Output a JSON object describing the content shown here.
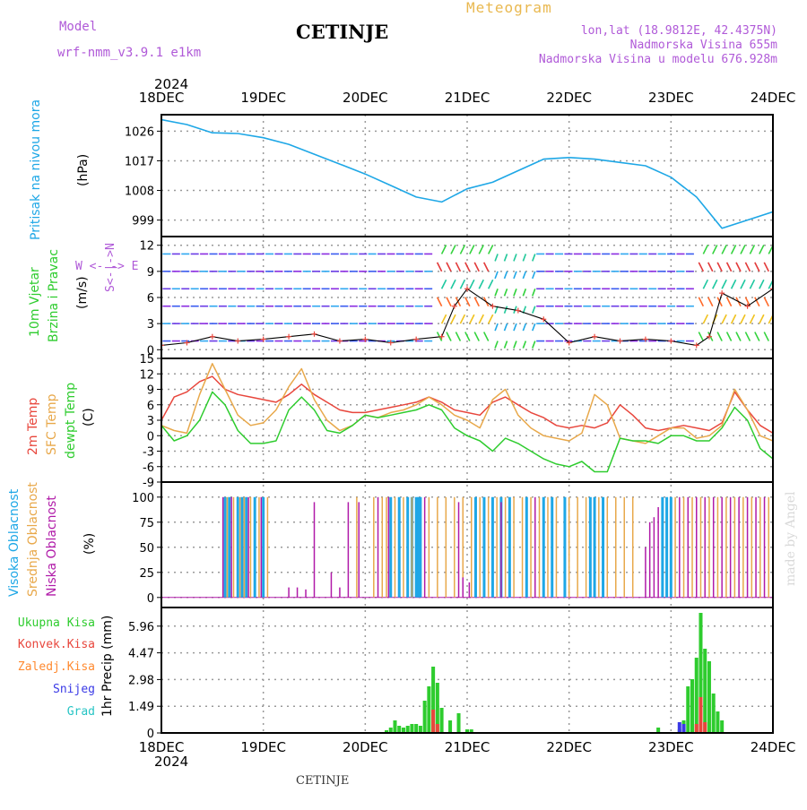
{
  "header": {
    "model_label": "Model",
    "model_name": "wrf-nmm_v3.9.1 e1km",
    "title": "CETINJE",
    "meteogram": "Meteogram",
    "lonlat": "lon,lat (18.9812E, 42.4375N)",
    "elevation": "Nadmorska Visina 655m",
    "model_elevation": "Nadmorska Visina u modelu 676.928m"
  },
  "x_axis": {
    "year": "2024",
    "labels": [
      "18DEC",
      "19DEC",
      "20DEC",
      "21DEC",
      "22DEC",
      "23DEC",
      "24DEC"
    ]
  },
  "colors": {
    "pressure": "#1ea7e6",
    "wind_label": "#2ecc2e",
    "temp2m": "#e8463c",
    "sfc_temp": "#e8a84a",
    "dewpt": "#2ecc2e",
    "cloud_high": "#1ea7e6",
    "cloud_mid": "#e8a84a",
    "cloud_low": "#b01aa8",
    "precip_total": "#2ecc2e",
    "precip_conv": "#e8463c",
    "precip_frozen": "#ff8a30",
    "snow": "#3a3ae6",
    "graupel": "#26c4c4",
    "watermark": "#d9d9d9"
  },
  "panels": {
    "pressure": {
      "label1": "Pritisak na nivou mora",
      "unit": "(hPa)",
      "ticks": [
        "1026",
        "1017",
        "1008",
        "999"
      ]
    },
    "wind": {
      "label1": "10m Vjetar",
      "label2": "Brzina i Pravac",
      "unit": "(m/s)",
      "ticks": [
        "12",
        "9",
        "6",
        "3",
        "0"
      ],
      "compass": "W <- -> E",
      "compass2": "S<-|->N"
    },
    "temp": {
      "label1": "2m Temp",
      "label2": "SFC Temp",
      "label3": "dewpt Temp",
      "unit": "(C)",
      "ticks": [
        "15",
        "12",
        "9",
        "6",
        "3",
        "0",
        "-3",
        "-6",
        "-9"
      ]
    },
    "cloud": {
      "label1": "Visoka Oblacnost",
      "label2": "Srednja Oblacnost",
      "label3": "Niska Oblacnost",
      "unit": "(%)",
      "ticks": [
        "100",
        "75",
        "50",
        "25",
        "0"
      ]
    },
    "precip": {
      "label": "1hr Precip (mm)",
      "ticks": [
        "5.96",
        "4.47",
        "2.98",
        "1.49",
        "0"
      ],
      "legend": [
        "Ukupna Kisa",
        "Konvek.Kisa",
        "Zaledj.Kisa",
        "Snijeg",
        "Grad"
      ]
    }
  },
  "watermark": "made by Angel",
  "footer": "CETINJE",
  "chart_data": [
    {
      "type": "line",
      "name": "Sea level pressure",
      "x": [
        0,
        6,
        12,
        18,
        24,
        30,
        36,
        42,
        48,
        54,
        60,
        66,
        72,
        78,
        84,
        90,
        96,
        102,
        108,
        114,
        120,
        126,
        132,
        138,
        144
      ],
      "y": [
        1029.5,
        1028,
        1025.5,
        1025.3,
        1024,
        1022,
        1019,
        1016,
        1013,
        1009.5,
        1006,
        1004.5,
        1008.5,
        1010.5,
        1014,
        1017.5,
        1018,
        1017.5,
        1016.5,
        1015.5,
        1012,
        1006,
        996.5,
        999,
        1001.5
      ],
      "ylim": [
        994,
        1031
      ]
    },
    {
      "type": "line",
      "name": "10m wind speed",
      "x": [
        0,
        6,
        12,
        18,
        24,
        30,
        36,
        42,
        48,
        54,
        60,
        66,
        69,
        72,
        78,
        84,
        90,
        96,
        102,
        108,
        114,
        120,
        126,
        129,
        132,
        138,
        144
      ],
      "y": [
        0.5,
        0.8,
        1.5,
        1,
        1.2,
        1.5,
        1.8,
        1,
        1.2,
        0.8,
        1.2,
        1.5,
        5,
        7,
        5,
        4.5,
        3.5,
        0.8,
        1.5,
        1,
        1.2,
        1,
        0.5,
        1.5,
        6.5,
        5,
        7
      ],
      "ylim": [
        -1,
        13
      ]
    },
    {
      "type": "line",
      "x": [
        0,
        3,
        6,
        9,
        12,
        15,
        18,
        21,
        24,
        27,
        30,
        33,
        36,
        39,
        42,
        45,
        48,
        51,
        54,
        57,
        60,
        63,
        66,
        69,
        72,
        75,
        78,
        81,
        84,
        87,
        90,
        93,
        96,
        99,
        102,
        105,
        108,
        111,
        114,
        117,
        120,
        123,
        126,
        129,
        132,
        135,
        138,
        141,
        144
      ],
      "series": [
        {
          "name": "2m Temp",
          "values": [
            3,
            7.5,
            8.5,
            10.5,
            11.5,
            9,
            8,
            7.5,
            7,
            6.5,
            8,
            10,
            8,
            6.5,
            5,
            4.5,
            4.5,
            5,
            5.5,
            6,
            6.5,
            7.5,
            6.5,
            5,
            4.5,
            4,
            6.5,
            7.5,
            6,
            4.5,
            3.5,
            2,
            1.5,
            2,
            1.5,
            2.5,
            6,
            4,
            1.5,
            1,
            1.5,
            2,
            1.5,
            1,
            2.5,
            8.5,
            5,
            2,
            0.5
          ]
        },
        {
          "name": "SFC Temp",
          "values": [
            2,
            1,
            0.5,
            8,
            14,
            9,
            4,
            2,
            2.5,
            5,
            9.5,
            13,
            7,
            3,
            1,
            2,
            4,
            3.5,
            4.5,
            5,
            6,
            7.5,
            6,
            4,
            3,
            1.5,
            7,
            9,
            4,
            1.5,
            0,
            -0.5,
            -1,
            0.5,
            8,
            6,
            -0.5,
            -1,
            -1.5,
            0,
            1.5,
            1.5,
            -0.5,
            0,
            2,
            9,
            5,
            0,
            -1
          ]
        },
        {
          "name": "dewpt Temp",
          "values": [
            2,
            -1,
            0,
            3,
            8.5,
            6,
            1,
            -1.5,
            -1.5,
            -1,
            5,
            7.5,
            5,
            1,
            0.5,
            2,
            4,
            3.5,
            4,
            4.5,
            5,
            6,
            5,
            1.5,
            0,
            -1,
            -3,
            -0.5,
            -1.5,
            -3,
            -4.5,
            -5.5,
            -6,
            -5,
            -7,
            -7,
            -0.5,
            -1,
            -1,
            -1.5,
            0,
            0,
            -1,
            -1,
            1.5,
            5.5,
            3,
            -2.5,
            -4.5
          ]
        }
      ],
      "ylim": [
        -9,
        15
      ]
    },
    {
      "type": "bar",
      "name": "Cloud cover (%)",
      "series": [
        {
          "name": "Visoka Oblacnost",
          "x": [
            15,
            16,
            18,
            19,
            20,
            22,
            24,
            54,
            56,
            58,
            59,
            60,
            60.5,
            61,
            74,
            76,
            78,
            80,
            82,
            86,
            90,
            92,
            95,
            101,
            102,
            104,
            118,
            119,
            120
          ],
          "values": [
            100,
            100,
            100,
            100,
            100,
            100,
            100,
            100,
            100,
            100,
            100,
            100,
            100,
            100,
            100,
            100,
            100,
            100,
            100,
            100,
            100,
            100,
            100,
            100,
            100,
            100,
            100,
            100,
            100
          ]
        },
        {
          "name": "Srednja Oblacnost",
          "x": [
            15.5,
            17,
            18.5,
            19.5,
            21,
            23,
            25,
            46,
            50,
            52,
            53,
            55,
            57,
            59,
            63,
            65,
            67,
            69,
            71,
            73,
            75,
            77,
            79,
            81,
            83,
            85,
            87,
            89,
            91,
            93,
            96,
            98,
            100,
            103,
            105,
            107,
            109,
            111,
            121,
            123,
            125,
            127,
            129,
            131,
            133,
            135,
            137,
            139,
            141,
            143
          ],
          "values": [
            100,
            100,
            100,
            100,
            100,
            100,
            100,
            100,
            100,
            100,
            100,
            100,
            100,
            100,
            100,
            100,
            100,
            100,
            100,
            100,
            100,
            100,
            100,
            100,
            100,
            100,
            100,
            100,
            100,
            100,
            100,
            100,
            100,
            100,
            100,
            100,
            100,
            100,
            100,
            100,
            100,
            100,
            100,
            100,
            100,
            100,
            100,
            100,
            100,
            100
          ]
        },
        {
          "name": "Niska Oblacnost",
          "x": [
            14.5,
            16.5,
            20.5,
            23.5,
            30,
            32,
            34,
            36,
            40,
            42,
            44,
            46.5,
            51,
            53.5,
            62,
            70,
            71,
            72.5,
            80,
            88,
            114,
            115,
            116,
            117,
            122,
            124,
            126,
            128,
            130,
            132,
            134,
            136,
            138,
            140,
            142
          ],
          "values": [
            100,
            100,
            100,
            100,
            10,
            10,
            8,
            95,
            25,
            10,
            95,
            95,
            100,
            100,
            100,
            95,
            20,
            15,
            95,
            100,
            50,
            75,
            80,
            90,
            100,
            100,
            100,
            100,
            100,
            100,
            100,
            100,
            100,
            100,
            100
          ]
        }
      ],
      "ylim": [
        0,
        100
      ]
    },
    {
      "type": "bar",
      "name": "1hr Precip (mm)",
      "series": [
        {
          "name": "Ukupna Kisa",
          "x": [
            53,
            54,
            55,
            56,
            57,
            58,
            59,
            60,
            61,
            62,
            63,
            64,
            65,
            66,
            68,
            70,
            72,
            73,
            117,
            122,
            123,
            124,
            125,
            126,
            127,
            128,
            129,
            130,
            131,
            132
          ],
          "values": [
            0.15,
            0.3,
            0.7,
            0.4,
            0.3,
            0.4,
            0.5,
            0.5,
            0.4,
            1.8,
            2.6,
            3.7,
            2.8,
            1.4,
            0.7,
            1.1,
            0.2,
            0.2,
            0.3,
            0.2,
            0.7,
            2.6,
            3.0,
            4.2,
            6.7,
            4.7,
            4.0,
            2.2,
            1.2,
            0.7
          ]
        },
        {
          "name": "Konvek.Kisa",
          "x": [
            64,
            65,
            126,
            127,
            128
          ],
          "values": [
            1.3,
            0.5,
            0.5,
            2.0,
            0.6
          ]
        },
        {
          "name": "Snijeg",
          "x": [
            122,
            123
          ],
          "values": [
            0.6,
            0.5
          ]
        }
      ],
      "ylim": [
        0,
        7
      ]
    }
  ]
}
